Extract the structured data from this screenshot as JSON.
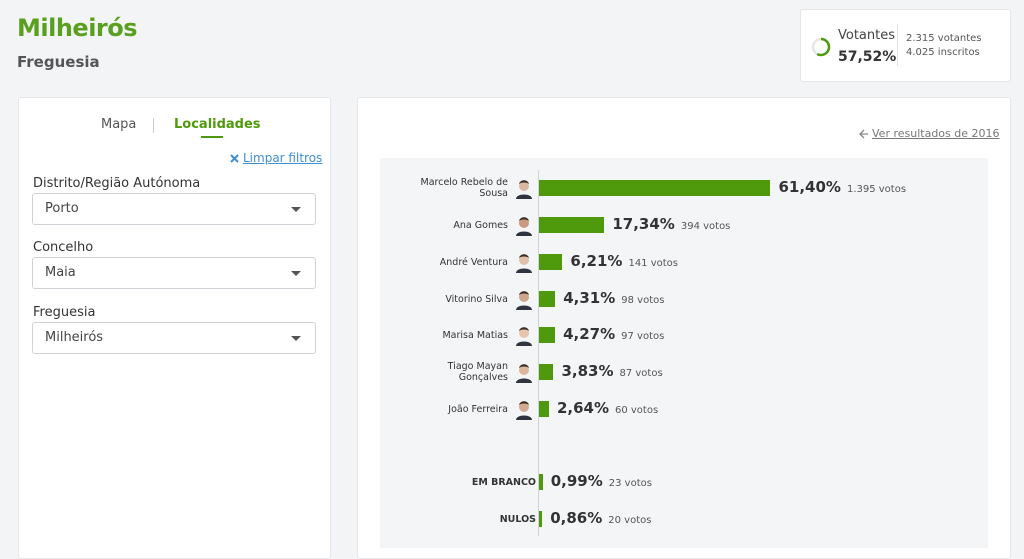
{
  "header": {
    "title": "Milheirós",
    "subtitle": "Freguesia"
  },
  "turnout": {
    "label": "Votantes",
    "value": 57.52,
    "value_label": "57,52%",
    "voters": "2.315 votantes",
    "registered": "4.025 inscritos"
  },
  "sidebar": {
    "tabs": [
      "Mapa",
      "Localidades"
    ],
    "clear_filters": "Limpar filtros",
    "filters": [
      {
        "label": "Distrito/Região Autónoma",
        "value": "Porto"
      },
      {
        "label": "Concelho",
        "value": "Maia"
      },
      {
        "label": "Freguesia",
        "value": "Milheirós"
      }
    ]
  },
  "chart_data": {
    "type": "bar",
    "link": "Ver resultados de 2016",
    "color": "#4f9a0c",
    "categories": [
      "Marcelo Rebelo de Sousa",
      "Ana Gomes",
      "André Ventura",
      "Vitorino Silva",
      "Marisa Matias",
      "Tiago Mayan Gonçalves",
      "João Ferreira",
      "EM BRANCO",
      "NULOS"
    ],
    "values": [
      61.4,
      17.34,
      6.21,
      4.31,
      4.27,
      3.83,
      2.64,
      0.99,
      0.86
    ],
    "value_labels": [
      "61,40%",
      "17,34%",
      "6,21%",
      "4,31%",
      "4,27%",
      "3,83%",
      "2,64%",
      "0,99%",
      "0,86%"
    ],
    "votes": [
      "1.395 votos",
      "394 votos",
      "141 votos",
      "98 votos",
      "97 votos",
      "87 votos",
      "60 votos",
      "23 votos",
      "20 votos"
    ]
  }
}
